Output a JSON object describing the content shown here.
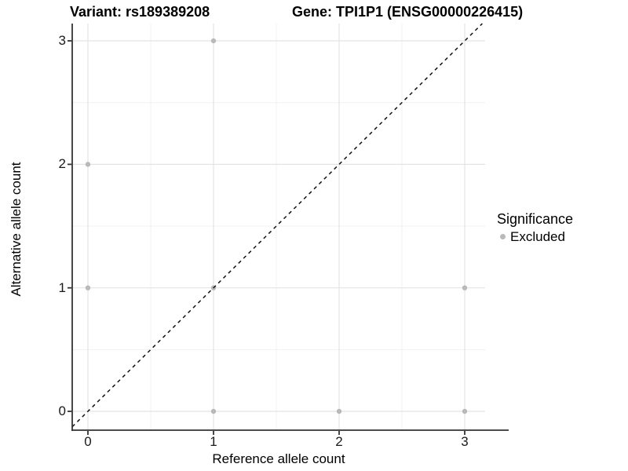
{
  "titles": {
    "variant": "Variant: rs189389208",
    "gene": "Gene: TPI1P1 (ENSG00000226415)"
  },
  "legend": {
    "title": "Significance",
    "items": [
      {
        "label": "Excluded",
        "color": "#b9b9b9"
      }
    ]
  },
  "chart_data": {
    "type": "scatter",
    "title_left": "Variant: rs189389208",
    "title_right": "Gene: TPI1P1 (ENSG00000226415)",
    "xlabel": "Reference allele count",
    "ylabel": "Alternative allele count",
    "x_ticks": [
      0,
      1,
      2,
      3
    ],
    "y_ticks": [
      0,
      1,
      2,
      3
    ],
    "minor_x": [
      0.5,
      1.5,
      2.5
    ],
    "minor_y": [
      0.5,
      1.5,
      2.5
    ],
    "xlim": [
      -0.125,
      3.1625
    ],
    "ylim": [
      -0.1525,
      3.14
    ],
    "grid": true,
    "legend_position": "right",
    "series": [
      {
        "name": "Excluded",
        "color": "#b9b9b9",
        "point_radius": 3.2,
        "points": [
          [
            0,
            1
          ],
          [
            0,
            2
          ],
          [
            1,
            0
          ],
          [
            1,
            1
          ],
          [
            1,
            3
          ],
          [
            2,
            0
          ],
          [
            3,
            0
          ],
          [
            3,
            1
          ]
        ]
      }
    ],
    "reference_line": {
      "type": "identity",
      "style": "dashed",
      "color": "#111111"
    },
    "colors": {
      "grid_major": "#e4e4e4",
      "grid_minor": "#f1f1f1",
      "axis": "#333333",
      "background": "#ffffff"
    }
  }
}
